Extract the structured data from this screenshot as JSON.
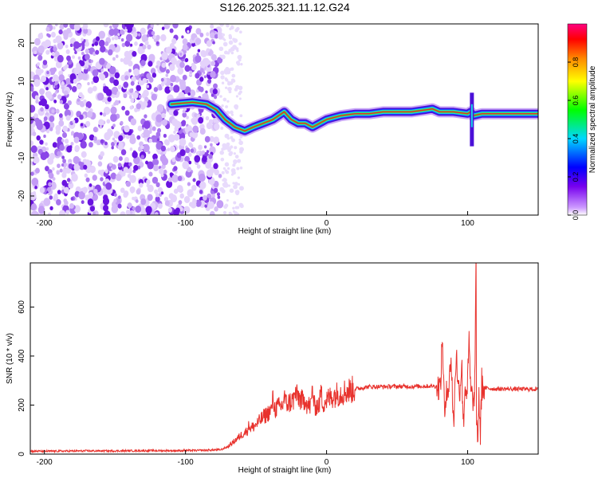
{
  "title": "S126.2025.321.11.12.G24",
  "colors": {
    "snr_line": "#e8322d",
    "axis": "#000000",
    "track_core": "#e03030"
  },
  "chart_data": [
    {
      "type": "heatmap",
      "name": "spectrogram",
      "xlabel": "Height of straight line (km)",
      "ylabel": "Frequency (Hz)",
      "xlim": [
        -210,
        150
      ],
      "ylim": [
        -25,
        25
      ],
      "xticks": [
        -200,
        -100,
        0,
        100
      ],
      "yticks": [
        -20,
        -10,
        0,
        10,
        20
      ],
      "noise_region_x": [
        -210,
        -75
      ],
      "signal_track": {
        "x": [
          -110,
          -95,
          -85,
          -78,
          -72,
          -65,
          -58,
          -52,
          -45,
          -38,
          -30,
          -25,
          -20,
          -15,
          -10,
          -5,
          0,
          5,
          10,
          20,
          30,
          40,
          50,
          60,
          70,
          75,
          80,
          90,
          100,
          102,
          104,
          110,
          120,
          130,
          140,
          150
        ],
        "freq": [
          4,
          4.5,
          4,
          2.5,
          0,
          -2,
          -3,
          -2,
          -1,
          0,
          2,
          0,
          -1,
          -1,
          -2,
          -1,
          0,
          0.5,
          1,
          1.5,
          1.5,
          2,
          2,
          2,
          2.5,
          2.8,
          2,
          2,
          1.5,
          2,
          1,
          1.5,
          1.5,
          1.5,
          1.5,
          1.5
        ]
      },
      "colorbar": {
        "label": "Normalized spectral amplitude",
        "range": [
          0,
          1
        ],
        "ticks": [
          0.0,
          0.2,
          0.4,
          0.6,
          0.8
        ]
      }
    },
    {
      "type": "line",
      "name": "snr",
      "xlabel": "Height of straight line (km)",
      "ylabel": "SNR (10 * v/v)",
      "xlim": [
        -210,
        150
      ],
      "ylim": [
        0,
        780
      ],
      "xticks": [
        -200,
        -100,
        0,
        100
      ],
      "yticks": [
        0,
        200,
        400,
        600
      ],
      "series": [
        {
          "name": "SNR",
          "x": [
            -210,
            -190,
            -170,
            -150,
            -130,
            -110,
            -90,
            -75,
            -70,
            -65,
            -60,
            -55,
            -50,
            -45,
            -40,
            -35,
            -30,
            -25,
            -20,
            -15,
            -10,
            -5,
            0,
            5,
            10,
            15,
            20,
            25,
            30,
            40,
            50,
            60,
            70,
            75,
            80,
            85,
            90,
            95,
            100,
            103,
            105,
            107,
            110,
            115,
            120,
            130,
            140,
            150
          ],
          "y": [
            12,
            12,
            13,
            13,
            14,
            14,
            15,
            18,
            30,
            55,
            80,
            100,
            120,
            150,
            175,
            190,
            200,
            215,
            235,
            200,
            195,
            200,
            220,
            240,
            250,
            258,
            265,
            270,
            275,
            275,
            276,
            276,
            277,
            278,
            275,
            272,
            270,
            268,
            265,
            240,
            200,
            180,
            270,
            268,
            266,
            266,
            265,
            265
          ],
          "spikes": [
            {
              "x": -55,
              "y": 120
            },
            {
              "x": -38,
              "y": 230
            },
            {
              "x": -30,
              "y": 240
            },
            {
              "x": -22,
              "y": 250
            },
            {
              "x": -15,
              "y": 235
            },
            {
              "x": -10,
              "y": 270
            },
            {
              "x": -4,
              "y": 260
            },
            {
              "x": 82,
              "y": 480
            },
            {
              "x": 84,
              "y": 420
            },
            {
              "x": 88,
              "y": 400
            },
            {
              "x": 92,
              "y": 420
            },
            {
              "x": 96,
              "y": 410
            },
            {
              "x": 101,
              "y": 460
            },
            {
              "x": 106,
              "y": 780
            },
            {
              "x": 109,
              "y": 660
            }
          ],
          "dips": [
            {
              "x": 84,
              "y": 130
            },
            {
              "x": 90,
              "y": 110
            },
            {
              "x": 97,
              "y": 120
            },
            {
              "x": 107,
              "y": 55
            },
            {
              "x": 109,
              "y": 80
            }
          ]
        }
      ]
    }
  ]
}
